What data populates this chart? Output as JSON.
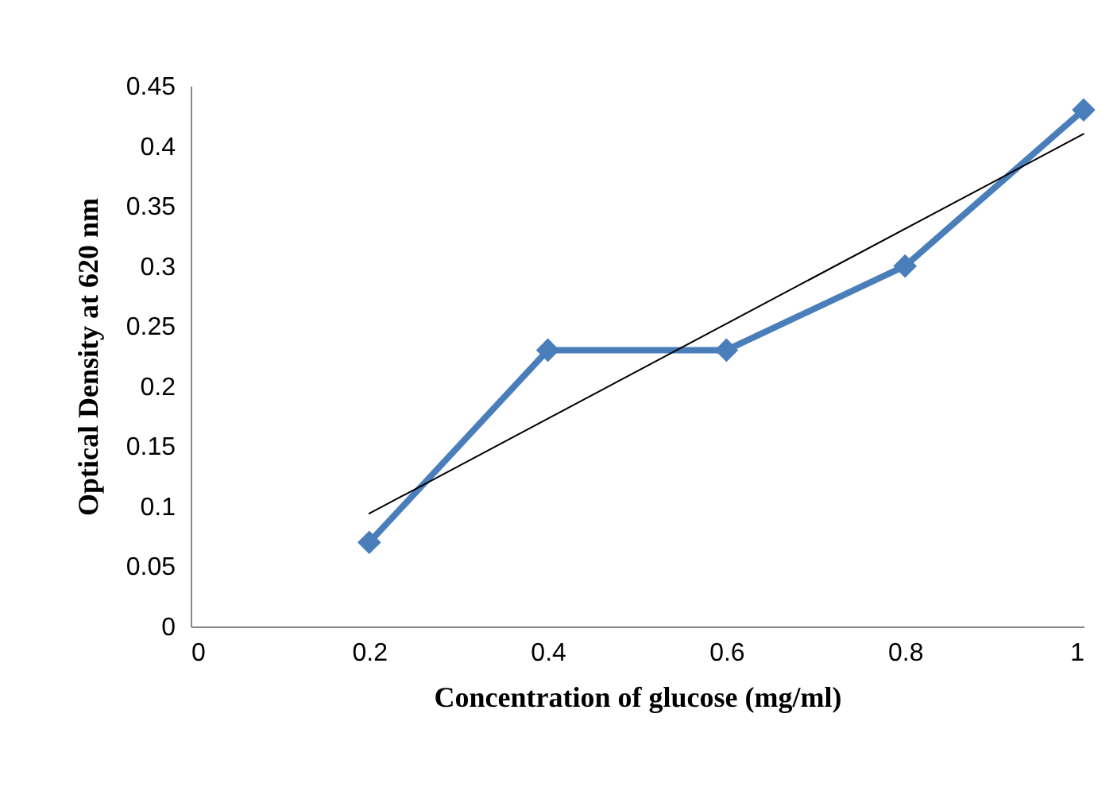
{
  "chart_data": {
    "type": "line",
    "xlabel": "Concentration of glucose (mg/ml)",
    "ylabel": "Optical Density at 620 nm",
    "x": [
      0.2,
      0.4,
      0.6,
      0.8,
      1
    ],
    "series": [
      {
        "color": "#4a7ebb",
        "values": [
          0.07,
          0.23,
          0.23,
          0.3,
          0.43
        ],
        "marker": "diamond"
      },
      {
        "type": "line",
        "color": "#000000",
        "x": [
          0.2,
          1
        ],
        "values": [
          0.094,
          0.41
        ],
        "marker": "none"
      }
    ],
    "xlim": [
      0,
      1
    ],
    "xticks": [
      0,
      0.2,
      0.4,
      0.6,
      0.8,
      1
    ],
    "ylim": [
      0,
      0.45
    ],
    "yticks": [
      0,
      0.05,
      0.1,
      0.15,
      0.2,
      0.25,
      0.3,
      0.35,
      0.4,
      0.45
    ],
    "grid": false
  }
}
